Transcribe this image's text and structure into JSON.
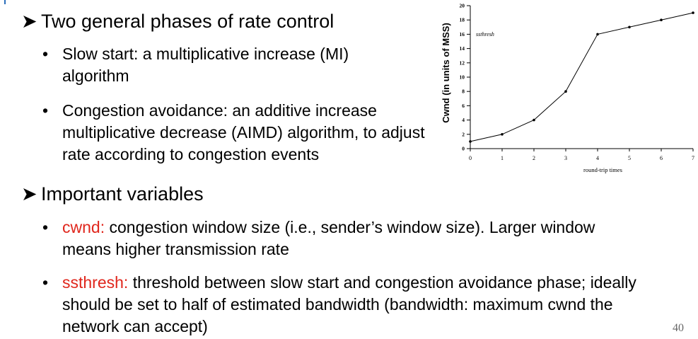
{
  "slide": {
    "bullet1": "Two general phases of rate control",
    "sub1": "Slow start:  a multiplicative increase (MI) algorithm",
    "sub2": "Congestion avoidance: an additive increase multiplicative decrease (AIMD) algorithm, to adjust rate according to congestion events",
    "bullet2": "Important variables",
    "var1_name": "cwnd:",
    "var1_text": " congestion window size (i.e., sender’s window size). Larger window means higher transmission rate",
    "var2_name": "ssthresh:",
    "var2_text": " threshold between slow start and congestion avoidance phase; ideally should be set to half of estimated bandwidth (bandwidth: maximum cwnd the network can accept)",
    "page_number": "40"
  },
  "chart_data": {
    "type": "line",
    "xlabel": "round-trip times",
    "ylabel": "Cwnd (in units of MSS)",
    "x": [
      0,
      1,
      2,
      3,
      4,
      5,
      6,
      7
    ],
    "y": [
      1,
      2,
      4,
      8,
      16,
      17,
      18,
      19
    ],
    "xticks": [
      "0",
      "1",
      "2",
      "3",
      "4",
      "5",
      "6",
      "7"
    ],
    "yticks": [
      "0",
      "2",
      "4",
      "6",
      "8",
      "10",
      "12",
      "14",
      "16",
      "18",
      "20"
    ],
    "xlim": [
      0,
      7
    ],
    "ylim": [
      0,
      20
    ],
    "annotation": {
      "text": "ssthresh",
      "y": 16
    },
    "grid": false,
    "line_color": "#000000"
  }
}
